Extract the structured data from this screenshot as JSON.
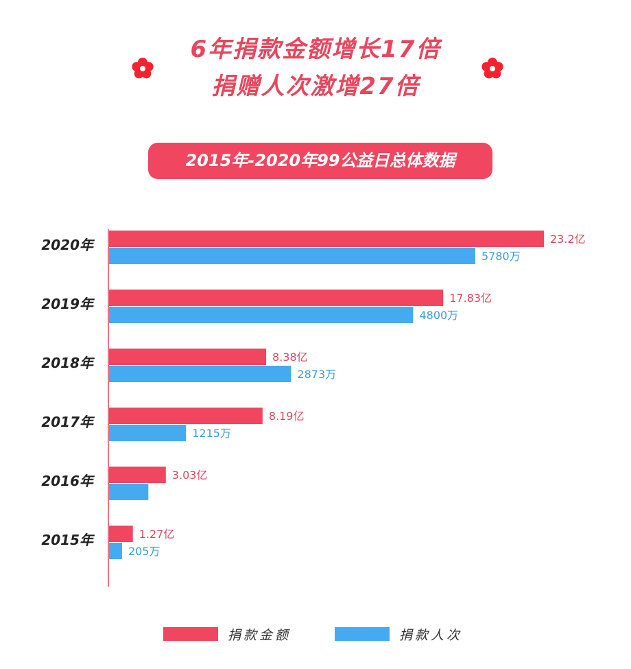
{
  "header": {
    "line1": "6年捐款金额增长17倍",
    "line2": "捐赠人次激增27倍",
    "subtitle": "2015年-2020年99公益日总体数据"
  },
  "colors": {
    "amount": "#f0465f",
    "people": "#45aaf0",
    "title": "#e8465e",
    "flower": "#f5222d"
  },
  "icons": [
    "flower-icon"
  ],
  "chart_data": {
    "type": "bar",
    "orientation": "horizontal",
    "categories": [
      "2020年",
      "2019年",
      "2018年",
      "2017年",
      "2016年",
      "2015年"
    ],
    "series": [
      {
        "name": "捐款金额",
        "unit": "亿",
        "values": [
          23.2,
          17.83,
          8.38,
          8.19,
          3.03,
          1.27
        ],
        "labels": [
          "23.2亿",
          "17.83亿",
          "8.38亿",
          "8.19亿",
          "3.03亿",
          "1.27亿"
        ]
      },
      {
        "name": "捐款人次",
        "unit": "万",
        "values": [
          5780,
          4800,
          2873,
          1215,
          620,
          205
        ],
        "labels": [
          "5780万",
          "4800万",
          "2873万",
          "1215万",
          "",
          "205万"
        ]
      }
    ],
    "legend": "bottom",
    "grid": false
  }
}
